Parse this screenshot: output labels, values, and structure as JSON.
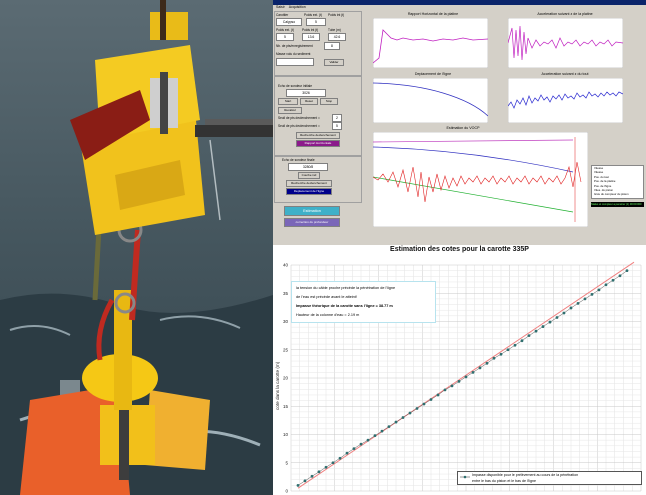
{
  "software": {
    "title": "",
    "menu": [
      "Saisir",
      "Acquisition"
    ],
    "left_panel": {
      "label_carottier": "Carottier",
      "label_carottier_value": "Calypso",
      "label_poids_ext": "Poids ext. (t)",
      "poids_ext_value": "5",
      "label_poids_int": "Poids int (t)",
      "poids_int_value": "13.6",
      "label_tube": "Tube (m)",
      "tube_value": "42.6",
      "label_nb_pts": "Nb. de pts/enregistrement",
      "nb_pts_value": "8",
      "label_masse": "Masse volu du sediment",
      "masse_value": "",
      "valider_label": "Valider",
      "group2_title": "",
      "echo_label": "Echo de sondeur initiale",
      "echo_value": "3026",
      "start_button": "Start",
      "reset_button": "Reset",
      "stop_button": "Stop",
      "recal_button": "Recalcul",
      "seuil1_label": "Seuil de pts declenchement =",
      "seuil1_value": "2",
      "seuil2_label": "Seuil de pts declenchement =",
      "seuil2_value": "5",
      "recherche_button": "Recherche declenchement",
      "rapport_button": "Rapport Horizontale",
      "echo2_label": "Echo de sondeur finale",
      "echo2_value": "3280/8",
      "courbe_button": "Courbe ind",
      "recherche2_button": "Recherche declenchement",
      "deplacement_button": "Deplacement de l'ligne",
      "estimation_button": "Estimation",
      "correction_button": "correction du profondeur"
    },
    "plots": {
      "p1_title": "Rapport Horizontal de la platine",
      "p2_title": "Acceleration suivant z de la platine",
      "p3_title": "Deplacement de l'ligne",
      "p4_title": "Acceleration suivant z du tout",
      "p5_title": "Estimation du VOCP"
    },
    "legend": [
      "Vitesse",
      "Vitesse",
      "Pos. du tout",
      "Pos. de la platine",
      "Pos. de l'ligne",
      "Vites. du piston",
      "Grav du compteur du piston"
    ],
    "status_text": "Status et compteur a penetrer (1) 00:00:000"
  },
  "chart_data": {
    "type": "scatter",
    "title": "Estimation des cotes pour la carotte  335P",
    "ylabel": "cote dans la carotte (m)",
    "xlabel": "",
    "ylim": [
      0,
      40
    ],
    "yticks": [
      0,
      5,
      10,
      15,
      20,
      25,
      30,
      35,
      40
    ],
    "grid": true,
    "annotation": {
      "line1": "la tension du câble proche précède la pénétration de l'ligne",
      "line2": "de l'eau est précède avant le atteint!",
      "line3": "Impasse théorique de la carotte sans l'ligne = 38.77 m",
      "line4": "Hauteur de la colonne d'eau = 2.19 m"
    },
    "legend": {
      "line1": "Impasse disponible pour le prélèvement au cours de la pénétration",
      "line2": "entre le bas du piston et le bas de l'ligne"
    },
    "series": [
      {
        "name": "Impasse disponible pour le prélèvement",
        "x": [
          0.02,
          0.04,
          0.06,
          0.08,
          0.1,
          0.12,
          0.14,
          0.16,
          0.18,
          0.2,
          0.22,
          0.24,
          0.26,
          0.28,
          0.3,
          0.32,
          0.34,
          0.36,
          0.38,
          0.4,
          0.42,
          0.44,
          0.46,
          0.48,
          0.5,
          0.52,
          0.54,
          0.56,
          0.58,
          0.6,
          0.62,
          0.64,
          0.66,
          0.68,
          0.7,
          0.72,
          0.74,
          0.76,
          0.78,
          0.8,
          0.82,
          0.84,
          0.86,
          0.88,
          0.9,
          0.92,
          0.94,
          0.96
        ],
        "values": [
          1.0,
          1.8,
          2.6,
          3.4,
          4.2,
          5.0,
          5.8,
          6.7,
          7.5,
          8.3,
          9.0,
          9.8,
          10.6,
          11.4,
          12.2,
          13.0,
          13.8,
          14.6,
          15.4,
          16.2,
          17.0,
          17.9,
          18.6,
          19.4,
          20.2,
          21.0,
          21.8,
          22.6,
          23.5,
          24.2,
          25.0,
          25.8,
          26.6,
          27.5,
          28.3,
          29.1,
          29.9,
          30.7,
          31.5,
          32.4,
          33.2,
          34.0,
          34.8,
          35.6,
          36.5,
          37.3,
          38.1,
          39.0
        ]
      },
      {
        "name": "",
        "x": [
          0.02,
          0.98
        ],
        "values": [
          0.5,
          40.5
        ]
      }
    ]
  }
}
